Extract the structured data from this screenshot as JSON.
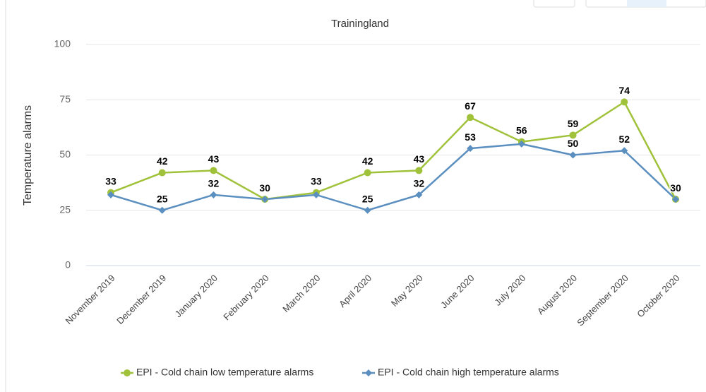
{
  "chart_data": {
    "type": "line",
    "title": "Trainingland",
    "y_label": "Temperature alarms",
    "categories": [
      "November 2019",
      "December 2019",
      "January 2020",
      "February 2020",
      "March 2020",
      "April 2020",
      "May 2020",
      "June 2020",
      "July 2020",
      "August 2020",
      "September 2020",
      "October 2020"
    ],
    "series": [
      {
        "name": "EPI - Cold chain low temperature alarms",
        "color": "#a0c23a",
        "marker": "circle",
        "values": [
          33,
          42,
          43,
          30,
          33,
          42,
          43,
          67,
          56,
          59,
          74,
          30
        ],
        "value_labels": [
          "33",
          "42",
          "43",
          "30",
          "33",
          "42",
          "43",
          "67",
          "56",
          "59",
          "74",
          null
        ]
      },
      {
        "name": "EPI - Cold chain high temperature alarms",
        "color": "#5b8fc0",
        "marker": "diamond",
        "values": [
          32,
          25,
          32,
          30,
          32,
          25,
          32,
          53,
          55,
          50,
          52,
          30
        ],
        "value_labels": [
          null,
          "25",
          "32",
          null,
          null,
          "25",
          "32",
          "53",
          null,
          "50",
          "52",
          "30"
        ]
      }
    ],
    "ylim": [
      0,
      100
    ],
    "yticks": [
      0,
      25,
      50,
      75,
      100
    ],
    "grid": true,
    "legend": "bottom"
  }
}
